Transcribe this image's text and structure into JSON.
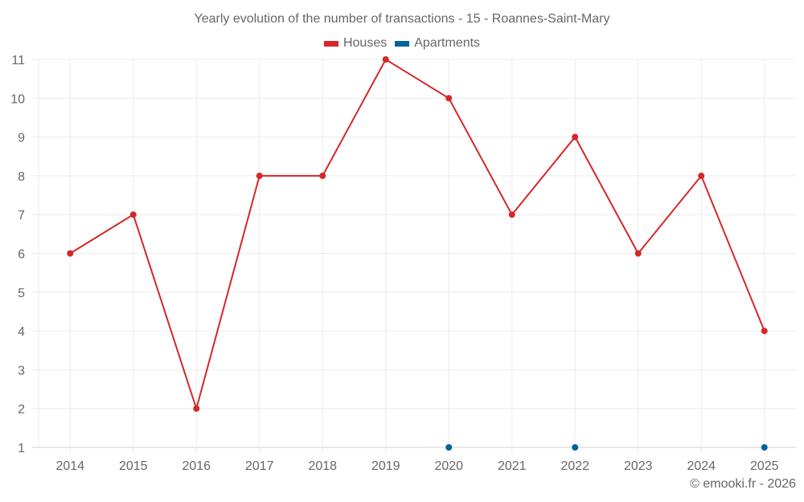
{
  "chart_data": {
    "type": "line",
    "title": "Yearly evolution of the number of transactions - 15 - Roannes-Saint-Mary",
    "xlabel": "",
    "ylabel": "",
    "categories": [
      "2014",
      "2015",
      "2016",
      "2017",
      "2018",
      "2019",
      "2020",
      "2021",
      "2022",
      "2023",
      "2024",
      "2025"
    ],
    "series": [
      {
        "name": "Houses",
        "color": "#d62728",
        "values": [
          6,
          7,
          2,
          8,
          8,
          11,
          10,
          7,
          9,
          6,
          8,
          4
        ]
      },
      {
        "name": "Apartments",
        "color": "#00639e",
        "values": [
          null,
          null,
          null,
          null,
          null,
          null,
          1,
          null,
          1,
          null,
          null,
          1
        ]
      }
    ],
    "yticks": [
      1,
      2,
      3,
      4,
      5,
      6,
      7,
      8,
      9,
      10,
      11
    ],
    "ylim": [
      1,
      11
    ],
    "grid": true,
    "legend_position": "top"
  },
  "legend": {
    "houses_label": "Houses",
    "apartments_label": "Apartments"
  },
  "footer": {
    "credit": "© emooki.fr - 2026"
  }
}
